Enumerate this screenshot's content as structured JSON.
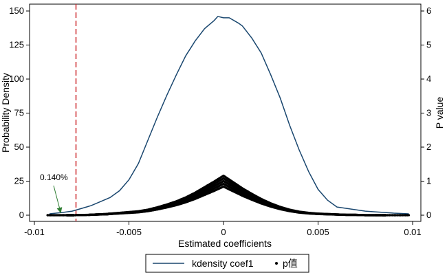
{
  "chart_data": {
    "type": "line",
    "xlabel": "Estimated coefficients",
    "ylabel_left": "Probability Density",
    "ylabel_right": "P value",
    "xlim": [
      -0.01,
      0.01
    ],
    "ylim_left": [
      0,
      150
    ],
    "ylim_right": [
      0,
      6
    ],
    "x_ticks": [
      -0.01,
      -0.005,
      0,
      0.005,
      0.01
    ],
    "x_tick_labels": [
      "-0.01",
      "-0.005",
      "0",
      "0.005",
      "0.01"
    ],
    "y_left_ticks": [
      0,
      25,
      50,
      75,
      100,
      125,
      150
    ],
    "y_left_tick_labels": [
      "0",
      "25",
      "50",
      "75",
      "100",
      "125",
      "150"
    ],
    "y_right_ticks": [
      0,
      1,
      2,
      3,
      4,
      5,
      6
    ],
    "y_right_tick_labels": [
      "0",
      "1",
      "2",
      "3",
      "4",
      "5",
      "6"
    ],
    "grid": false,
    "legend_position": "bottom",
    "reference_line": {
      "x": -0.0078,
      "color": "#cc2529",
      "style": "dashed"
    },
    "annotation": {
      "text": "0.140%",
      "points_to_x": -0.0086,
      "points_to_y": 1.5,
      "color": "#2e7d32"
    },
    "series": [
      {
        "name": "kdensity coef1",
        "axis": "left",
        "color": "#1a476f",
        "x": [
          -0.0092,
          -0.0085,
          -0.008,
          -0.0075,
          -0.007,
          -0.0065,
          -0.006,
          -0.0055,
          -0.005,
          -0.0045,
          -0.004,
          -0.0035,
          -0.003,
          -0.0025,
          -0.002,
          -0.0015,
          -0.001,
          -0.0005,
          -0.0003,
          0,
          0.0003,
          0.0008,
          0.001,
          0.0015,
          0.002,
          0.0025,
          0.003,
          0.0035,
          0.004,
          0.0045,
          0.005,
          0.0055,
          0.006,
          0.0065,
          0.007,
          0.0075,
          0.008,
          0.0085,
          0.009,
          0.0098
        ],
        "y": [
          1,
          2,
          3,
          5,
          7,
          10,
          13,
          18,
          26,
          38,
          55,
          72,
          88,
          103,
          117,
          128,
          137,
          143,
          146,
          145,
          145,
          141,
          139,
          130,
          119,
          103,
          86,
          66,
          48,
          32,
          19,
          11,
          6,
          5,
          4,
          3,
          2.5,
          2,
          1.5,
          1
        ]
      },
      {
        "name": "p值",
        "axis": "right",
        "color": "#000000",
        "type": "scatter",
        "x": [
          -0.0093,
          -0.0083,
          -0.0081,
          -0.0079,
          -0.0071,
          -0.0067,
          -0.0062,
          -0.006,
          -0.0055,
          -0.005,
          -0.0045,
          -0.004,
          -0.0035,
          -0.003,
          -0.0025,
          -0.002,
          -0.0015,
          -0.001,
          -0.0005,
          0,
          0.0005,
          0.001,
          0.0015,
          0.002,
          0.0025,
          0.003,
          0.0035,
          0.004,
          0.0045,
          0.005,
          0.0055,
          0.006,
          0.0065,
          0.007,
          0.0075,
          0.008,
          0.0084,
          0.0086,
          0.0098
        ],
        "y": [
          0,
          0,
          0,
          0,
          0.01,
          0.02,
          0.03,
          0.04,
          0.06,
          0.08,
          0.1,
          0.14,
          0.2,
          0.27,
          0.35,
          0.45,
          0.57,
          0.71,
          0.85,
          1.0,
          0.84,
          0.68,
          0.54,
          0.41,
          0.3,
          0.21,
          0.14,
          0.09,
          0.06,
          0.04,
          0.03,
          0.02,
          0.01,
          0.01,
          0,
          0,
          0,
          0,
          0
        ]
      }
    ]
  }
}
